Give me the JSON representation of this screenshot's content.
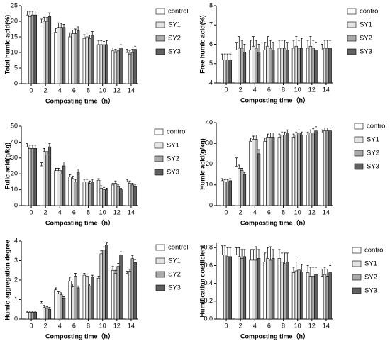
{
  "chart_data": [
    {
      "type": "bar",
      "ylabel": "Total humic acid(%)",
      "xlabel": "Composting time（h）",
      "categories": [
        "0",
        "2",
        "4",
        "6",
        "8",
        "10",
        "12",
        "14"
      ],
      "ylim": [
        0,
        25
      ],
      "yticks": [
        0,
        5,
        10,
        15,
        20,
        25
      ],
      "series": [
        {
          "name": "control",
          "color": "#ffffff",
          "values": [
            22,
            19.5,
            16.5,
            15,
            14.5,
            12.5,
            10.5,
            10
          ],
          "errors": [
            1.3,
            1.2,
            1.2,
            1.3,
            1.2,
            1.2,
            1,
            1
          ]
        },
        {
          "name": "SY1",
          "color": "#e4e4e4",
          "values": [
            21.5,
            20,
            18,
            16,
            15,
            12.5,
            10,
            9.5
          ],
          "errors": [
            1.5,
            1.3,
            1.5,
            1.2,
            1.2,
            1.3,
            1,
            1
          ]
        },
        {
          "name": "SY2",
          "color": "#aaaaaa",
          "values": [
            22,
            20,
            18,
            16,
            14.5,
            12.5,
            10.5,
            10
          ],
          "errors": [
            1.2,
            1.2,
            1.3,
            1.5,
            1,
            1,
            1,
            1
          ]
        },
        {
          "name": "SY3",
          "color": "#606060",
          "values": [
            22,
            21.5,
            18,
            17,
            15.5,
            12.5,
            11.5,
            11
          ],
          "errors": [
            1.3,
            1.2,
            1,
            1.2,
            1.2,
            1.3,
            1,
            1
          ]
        }
      ]
    },
    {
      "type": "bar",
      "ylabel": "Free humic acid(%)",
      "xlabel": "Composting time（h）",
      "categories": [
        "0",
        "2",
        "4",
        "6",
        "8",
        "10",
        "12",
        "14"
      ],
      "ylim": [
        4,
        8
      ],
      "yticks": [
        4,
        5,
        6,
        7,
        8
      ],
      "series": [
        {
          "name": "control",
          "color": "#ffffff",
          "values": [
            5.2,
            5.7,
            5.7,
            5.7,
            5.8,
            5.8,
            5.8,
            5.7
          ],
          "errors": [
            0.3,
            0.4,
            0.5,
            0.4,
            0.4,
            0.4,
            0.4,
            0.3
          ]
        },
        {
          "name": "SY1",
          "color": "#e4e4e4",
          "values": [
            5.2,
            5.8,
            5.9,
            5.9,
            5.8,
            5.9,
            5.9,
            5.8
          ],
          "errors": [
            0.3,
            0.6,
            0.5,
            0.5,
            0.4,
            0.5,
            0.5,
            0.4
          ]
        },
        {
          "name": "SY2",
          "color": "#aaaaaa",
          "values": [
            5.2,
            5.8,
            5.8,
            5.8,
            5.8,
            5.8,
            5.8,
            5.8
          ],
          "errors": [
            0.3,
            0.4,
            0.4,
            0.4,
            0.4,
            0.4,
            0.4,
            0.4
          ]
        },
        {
          "name": "SY3",
          "color": "#606060",
          "values": [
            5.2,
            5.6,
            5.6,
            5.7,
            5.7,
            5.8,
            5.7,
            5.8
          ],
          "errors": [
            0.3,
            0.4,
            0.4,
            0.4,
            0.4,
            0.5,
            0.4,
            0.4
          ]
        }
      ]
    },
    {
      "type": "bar",
      "ylabel": "Fulic acid(g/kg)",
      "xlabel": "Composting time（h）",
      "categories": [
        "0",
        "2",
        "4",
        "6",
        "8",
        "10",
        "12",
        "14"
      ],
      "ylim": [
        0,
        50
      ],
      "yticks": [
        0,
        10,
        20,
        30,
        40,
        50
      ],
      "series": [
        {
          "name": "control",
          "color": "#ffffff",
          "values": [
            37,
            25,
            22,
            18,
            15,
            16,
            13,
            15
          ],
          "errors": [
            2,
            2,
            1.5,
            1.5,
            1.5,
            1,
            1,
            1.5
          ]
        },
        {
          "name": "SY1",
          "color": "#e4e4e4",
          "values": [
            36,
            34,
            22,
            17,
            15,
            11,
            14,
            14
          ],
          "errors": [
            2,
            2,
            1.5,
            1.5,
            1.5,
            1.5,
            1.5,
            1.5
          ]
        },
        {
          "name": "SY2",
          "color": "#aaaaaa",
          "values": [
            36,
            32,
            20,
            15,
            14,
            10,
            12,
            13
          ],
          "errors": [
            2,
            2,
            2,
            1.5,
            1.5,
            1.5,
            1,
            1
          ]
        },
        {
          "name": "SY3",
          "color": "#606060",
          "values": [
            36,
            37,
            25,
            21,
            15,
            10,
            10,
            12
          ],
          "errors": [
            2,
            2,
            2.5,
            2,
            1.5,
            1,
            1,
            1
          ]
        }
      ]
    },
    {
      "type": "bar",
      "ylabel": "Humic acid(g/kg)",
      "xlabel": "Composting time（h）",
      "categories": [
        "0",
        "2",
        "4",
        "6",
        "8",
        "10",
        "12",
        "14"
      ],
      "ylim": [
        0,
        40
      ],
      "yticks": [
        0,
        10,
        20,
        30,
        40
      ],
      "series": [
        {
          "name": "control",
          "color": "#ffffff",
          "values": [
            12,
            19,
            31,
            31,
            33,
            33,
            34,
            35
          ],
          "errors": [
            1,
            4,
            1.5,
            1.5,
            1.5,
            1.5,
            1.5,
            1.5
          ]
        },
        {
          "name": "SY1",
          "color": "#e4e4e4",
          "values": [
            11.5,
            18,
            32,
            33,
            34,
            34,
            35,
            36
          ],
          "errors": [
            1,
            1.5,
            1.5,
            1.5,
            1.5,
            1.5,
            1.5,
            1.5
          ]
        },
        {
          "name": "SY2",
          "color": "#aaaaaa",
          "values": [
            11.5,
            17,
            32,
            33,
            34,
            35,
            35,
            36
          ],
          "errors": [
            1,
            1,
            2,
            2,
            1.5,
            1.5,
            2,
            1.5
          ]
        },
        {
          "name": "SY3",
          "color": "#606060",
          "values": [
            12,
            15,
            25,
            33,
            35,
            34,
            36,
            36
          ],
          "errors": [
            1,
            1,
            2,
            2,
            1.5,
            1.5,
            2,
            1.5
          ]
        }
      ]
    },
    {
      "type": "bar",
      "ylabel": "Humic aggregation degree",
      "xlabel": "Composting time（h）",
      "categories": [
        "0",
        "2",
        "4",
        "6",
        "8",
        "10",
        "12",
        "14"
      ],
      "ylim": [
        0,
        4
      ],
      "yticks": [
        0,
        1,
        2,
        3,
        4
      ],
      "series": [
        {
          "name": "control",
          "color": "#ffffff",
          "values": [
            0.35,
            0.8,
            1.5,
            1.95,
            2.25,
            2.1,
            2.5,
            2.35
          ],
          "errors": [
            0.05,
            0.1,
            0.1,
            0.2,
            0.1,
            0.1,
            0.2,
            0.1
          ]
        },
        {
          "name": "SY1",
          "color": "#e4e4e4",
          "values": [
            0.35,
            0.6,
            1.3,
            1.65,
            2.2,
            3.35,
            2.35,
            2.45
          ],
          "errors": [
            0.05,
            0.1,
            0.1,
            0.15,
            0.1,
            0.15,
            0.15,
            0.1
          ]
        },
        {
          "name": "SY2",
          "color": "#aaaaaa",
          "values": [
            0.35,
            0.55,
            1.25,
            2.2,
            1.7,
            3.55,
            2.7,
            3.1
          ],
          "errors": [
            0.05,
            0.1,
            0.1,
            0.15,
            0.1,
            0.15,
            0.15,
            0.15
          ]
        },
        {
          "name": "SY3",
          "color": "#606060",
          "values": [
            0.35,
            0.5,
            1.05,
            1.6,
            2.15,
            3.8,
            3.3,
            2.9
          ],
          "errors": [
            0.05,
            0.1,
            0.1,
            0.1,
            0.1,
            0.1,
            0.15,
            0.15
          ]
        }
      ]
    },
    {
      "type": "bar",
      "ylabel": "Humification coefficient",
      "xlabel": "Composting time（h）",
      "categories": [
        "0",
        "2",
        "4",
        "6",
        "8",
        "10",
        "12",
        "14"
      ],
      "ylim": [
        0,
        0.85
      ],
      "yticks": [
        {
          "value": 0,
          "label": "0.0"
        },
        0.2,
        0.4,
        0.6,
        0.8
      ],
      "series": [
        {
          "name": "control",
          "color": "#ffffff",
          "values": [
            0.72,
            0.72,
            0.66,
            0.64,
            0.68,
            0.52,
            0.52,
            0.48
          ],
          "errors": [
            0.1,
            0.08,
            0.12,
            0.1,
            0.1,
            0.06,
            0.08,
            0.08
          ]
        },
        {
          "name": "SY1",
          "color": "#e4e4e4",
          "values": [
            0.72,
            0.7,
            0.66,
            0.68,
            0.64,
            0.54,
            0.48,
            0.5
          ],
          "errors": [
            0.1,
            0.1,
            0.12,
            0.12,
            0.1,
            0.1,
            0.1,
            0.08
          ]
        },
        {
          "name": "SY2",
          "color": "#aaaaaa",
          "values": [
            0.7,
            0.68,
            0.66,
            0.66,
            0.62,
            0.55,
            0.48,
            0.48
          ],
          "errors": [
            0.1,
            0.1,
            0.15,
            0.15,
            0.12,
            0.12,
            0.1,
            0.08
          ]
        },
        {
          "name": "SY3",
          "color": "#606060",
          "values": [
            0.7,
            0.7,
            0.68,
            0.68,
            0.64,
            0.53,
            0.5,
            0.52
          ],
          "errors": [
            0.1,
            0.08,
            0.1,
            0.1,
            0.1,
            0.08,
            0.08,
            0.08
          ]
        }
      ]
    }
  ]
}
